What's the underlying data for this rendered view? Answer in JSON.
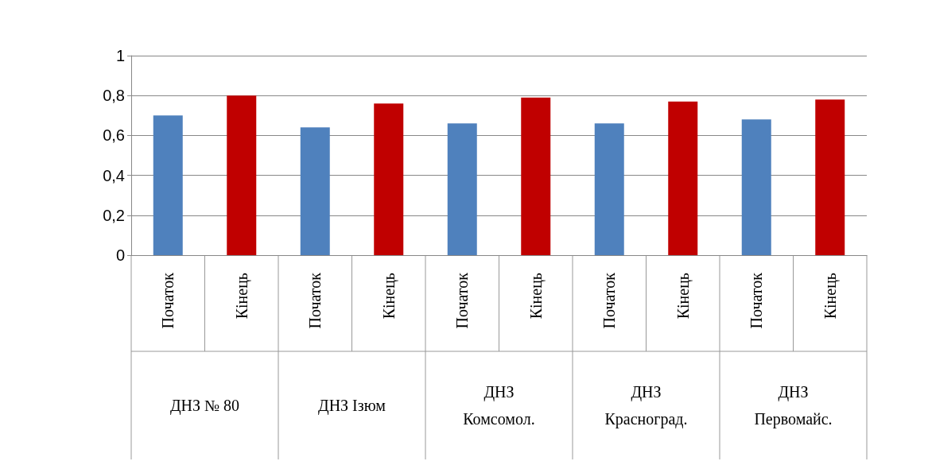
{
  "chart_data": {
    "type": "bar",
    "categories": [
      "Початок",
      "Кінець",
      "Початок",
      "Кінець",
      "Початок",
      "Кінець",
      "Початок",
      "Кінець",
      "Початок",
      "Кінець"
    ],
    "values": [
      0.7,
      0.8,
      0.64,
      0.76,
      0.66,
      0.79,
      0.66,
      0.77,
      0.68,
      0.78
    ],
    "colors": [
      "#4f81bd",
      "#c00000",
      "#4f81bd",
      "#c00000",
      "#4f81bd",
      "#c00000",
      "#4f81bd",
      "#c00000",
      "#4f81bd",
      "#c00000"
    ],
    "ylim": [
      0,
      1
    ],
    "yticks": [
      0,
      {
        "value": 0.2,
        "label": "0,2"
      },
      {
        "value": 0.4,
        "label": "0,4"
      },
      {
        "value": 0.6,
        "label": "0,6"
      },
      {
        "value": 0.8,
        "label": "0,8"
      },
      1
    ],
    "grid": "y",
    "annotations": [
      "ДНЗ № 80",
      "ДНЗ Ізюм",
      "ДНЗ\nКомсомол.",
      "ДНЗ\nКрасноград.",
      "ДНЗ\nПервомайс."
    ]
  }
}
